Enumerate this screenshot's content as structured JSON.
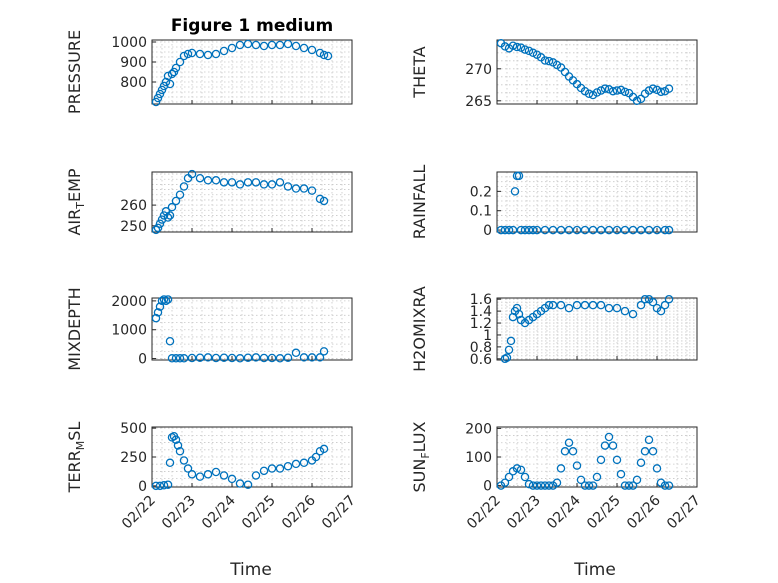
{
  "figure": {
    "title": "Figure 1 medium",
    "xlabel": "Time",
    "x_tick_labels": [
      "02/22",
      "02/23",
      "02/24",
      "02/25",
      "02/26",
      "02/27"
    ],
    "marker_color": "#0072BD"
  },
  "chart_data": [
    {
      "type": "scatter",
      "ylabel": "PRESSURE",
      "ylim": [
        690,
        1010
      ],
      "yticks": [
        800,
        900,
        1000
      ],
      "xlim": [
        0,
        5
      ],
      "x": [
        0.1,
        0.15,
        0.2,
        0.25,
        0.3,
        0.35,
        0.4,
        0.45,
        0.5,
        0.55,
        0.6,
        0.7,
        0.8,
        0.9,
        1.0,
        1.2,
        1.4,
        1.6,
        1.8,
        2.0,
        2.2,
        2.4,
        2.6,
        2.8,
        3.0,
        3.2,
        3.4,
        3.6,
        3.8,
        4.0,
        4.2,
        4.3,
        4.4
      ],
      "y": [
        700,
        720,
        740,
        760,
        780,
        800,
        830,
        790,
        840,
        850,
        870,
        900,
        930,
        940,
        945,
        940,
        935,
        940,
        955,
        970,
        985,
        990,
        985,
        980,
        985,
        985,
        990,
        980,
        970,
        960,
        945,
        935,
        930
      ]
    },
    {
      "type": "scatter",
      "ylabel": "THETA",
      "ylim": [
        264.5,
        274.5
      ],
      "yticks": [
        265,
        270
      ],
      "xlim": [
        0,
        5
      ],
      "x": [
        0.1,
        0.2,
        0.3,
        0.4,
        0.5,
        0.6,
        0.7,
        0.8,
        0.9,
        1.0,
        1.1,
        1.2,
        1.3,
        1.4,
        1.5,
        1.6,
        1.7,
        1.8,
        1.9,
        2.0,
        2.1,
        2.2,
        2.3,
        2.4,
        2.5,
        2.6,
        2.7,
        2.8,
        2.9,
        3.0,
        3.1,
        3.2,
        3.3,
        3.4,
        3.5,
        3.6,
        3.7,
        3.8,
        3.9,
        4.0,
        4.1,
        4.2,
        4.3
      ],
      "y": [
        274,
        273.5,
        273.2,
        273.6,
        273.4,
        273.3,
        273,
        272.8,
        272.5,
        272.2,
        271.8,
        271.3,
        271.2,
        271,
        270.6,
        270.2,
        269.5,
        268.8,
        268.2,
        267.6,
        267.0,
        266.5,
        266.1,
        265.9,
        266.3,
        266.6,
        266.9,
        266.8,
        266.5,
        266.6,
        266.7,
        266.4,
        266.2,
        265.6,
        265.0,
        265.3,
        266.1,
        266.6,
        266.9,
        266.7,
        266.4,
        266.5,
        266.9
      ]
    },
    {
      "type": "scatter",
      "ylabel": "AIR_TEMP",
      "ylim": [
        247,
        276
      ],
      "yticks": [
        250,
        260
      ],
      "xlim": [
        0,
        5
      ],
      "x": [
        0.1,
        0.15,
        0.2,
        0.25,
        0.3,
        0.35,
        0.4,
        0.45,
        0.5,
        0.6,
        0.7,
        0.8,
        0.9,
        1.0,
        1.2,
        1.4,
        1.6,
        1.8,
        2.0,
        2.2,
        2.4,
        2.6,
        2.8,
        3.0,
        3.2,
        3.4,
        3.6,
        3.8,
        4.0,
        4.2,
        4.3
      ],
      "y": [
        248,
        249,
        251,
        253,
        255,
        257,
        254,
        255,
        259,
        262,
        265,
        269,
        273,
        275,
        273,
        272,
        272,
        271,
        271,
        270,
        271,
        271,
        270,
        270,
        271,
        269,
        268,
        268,
        267,
        263,
        262
      ]
    },
    {
      "type": "scatter",
      "ylabel": "RAINFALL",
      "ylim": [
        -0.01,
        0.3
      ],
      "yticks": [
        0,
        0.1,
        0.2
      ],
      "xlim": [
        0,
        5
      ],
      "x": [
        0.1,
        0.2,
        0.3,
        0.4,
        0.45,
        0.5,
        0.55,
        0.6,
        0.7,
        0.8,
        0.9,
        1.0,
        1.2,
        1.4,
        1.6,
        1.8,
        2.0,
        2.2,
        2.4,
        2.6,
        2.8,
        3.0,
        3.2,
        3.4,
        3.6,
        3.8,
        4.0,
        4.2,
        4.3
      ],
      "y": [
        0,
        0,
        0,
        0,
        0.2,
        0.28,
        0.28,
        0,
        0,
        0,
        0,
        0,
        0,
        0,
        0,
        0,
        0,
        0,
        0,
        0,
        0,
        0,
        0,
        0,
        0,
        0,
        0,
        0,
        0
      ]
    },
    {
      "type": "scatter",
      "ylabel": "MIXDEPTH",
      "ylim": [
        -50,
        2100
      ],
      "yticks": [
        0,
        1000,
        2000
      ],
      "xlim": [
        0,
        5
      ],
      "x": [
        0.1,
        0.15,
        0.2,
        0.25,
        0.3,
        0.35,
        0.4,
        0.45,
        0.5,
        0.6,
        0.7,
        0.8,
        1.0,
        1.2,
        1.4,
        1.6,
        1.8,
        2.0,
        2.2,
        2.4,
        2.6,
        2.8,
        3.0,
        3.2,
        3.4,
        3.6,
        3.8,
        4.0,
        4.2,
        4.3
      ],
      "y": [
        1400,
        1600,
        1800,
        2000,
        2050,
        2000,
        2050,
        600,
        10,
        10,
        10,
        10,
        20,
        30,
        40,
        20,
        30,
        20,
        10,
        30,
        40,
        20,
        20,
        10,
        30,
        200,
        40,
        40,
        40,
        250
      ]
    },
    {
      "type": "scatter",
      "ylabel": "H2OMIXRA",
      "ylim": [
        0.58,
        1.62
      ],
      "yticks": [
        0.6,
        0.8,
        1.0,
        1.2,
        1.4,
        1.6
      ],
      "xlim": [
        0,
        5
      ],
      "x": [
        0.2,
        0.25,
        0.3,
        0.35,
        0.4,
        0.45,
        0.5,
        0.55,
        0.6,
        0.7,
        0.8,
        0.9,
        1.0,
        1.1,
        1.2,
        1.3,
        1.4,
        1.6,
        1.8,
        2.0,
        2.2,
        2.4,
        2.6,
        2.8,
        3.0,
        3.2,
        3.4,
        3.6,
        3.7,
        3.8,
        3.9,
        4.0,
        4.1,
        4.2,
        4.3
      ],
      "y": [
        0.6,
        0.62,
        0.75,
        0.9,
        1.3,
        1.4,
        1.45,
        1.35,
        1.25,
        1.2,
        1.25,
        1.3,
        1.35,
        1.4,
        1.45,
        1.5,
        1.5,
        1.5,
        1.45,
        1.5,
        1.5,
        1.5,
        1.5,
        1.45,
        1.45,
        1.4,
        1.35,
        1.5,
        1.6,
        1.6,
        1.55,
        1.45,
        1.4,
        1.5,
        1.6
      ]
    },
    {
      "type": "scatter",
      "ylabel": "TERR_MSL",
      "ylim": [
        -10,
        510
      ],
      "yticks": [
        0,
        250,
        500
      ],
      "xlim": [
        0,
        5
      ],
      "x": [
        0.1,
        0.2,
        0.3,
        0.4,
        0.45,
        0.5,
        0.55,
        0.6,
        0.65,
        0.7,
        0.8,
        0.9,
        1.0,
        1.2,
        1.4,
        1.6,
        1.8,
        2.0,
        2.2,
        2.4,
        2.6,
        2.8,
        3.0,
        3.2,
        3.4,
        3.6,
        3.8,
        4.0,
        4.1,
        4.2,
        4.3
      ],
      "y": [
        0,
        0,
        5,
        10,
        200,
        420,
        430,
        400,
        350,
        300,
        220,
        150,
        100,
        80,
        100,
        120,
        90,
        60,
        20,
        10,
        90,
        130,
        150,
        150,
        170,
        190,
        200,
        220,
        250,
        300,
        320
      ]
    },
    {
      "type": "scatter",
      "ylabel": "SUN_FLUX",
      "ylim": [
        -5,
        205
      ],
      "yticks": [
        0,
        100,
        200
      ],
      "xlim": [
        0,
        5
      ],
      "x": [
        0.1,
        0.2,
        0.3,
        0.4,
        0.5,
        0.6,
        0.7,
        0.8,
        0.9,
        1.0,
        1.1,
        1.2,
        1.3,
        1.4,
        1.5,
        1.6,
        1.7,
        1.8,
        1.9,
        2.0,
        2.1,
        2.2,
        2.3,
        2.4,
        2.5,
        2.6,
        2.7,
        2.8,
        2.9,
        3.0,
        3.1,
        3.2,
        3.3,
        3.4,
        3.5,
        3.6,
        3.7,
        3.8,
        3.9,
        4.0,
        4.1,
        4.2,
        4.3
      ],
      "y": [
        0,
        10,
        30,
        50,
        60,
        55,
        30,
        5,
        0,
        0,
        0,
        0,
        0,
        0,
        10,
        60,
        120,
        150,
        120,
        70,
        20,
        0,
        0,
        0,
        30,
        90,
        140,
        170,
        140,
        90,
        40,
        0,
        0,
        0,
        20,
        80,
        120,
        160,
        120,
        60,
        10,
        0,
        0
      ]
    }
  ]
}
